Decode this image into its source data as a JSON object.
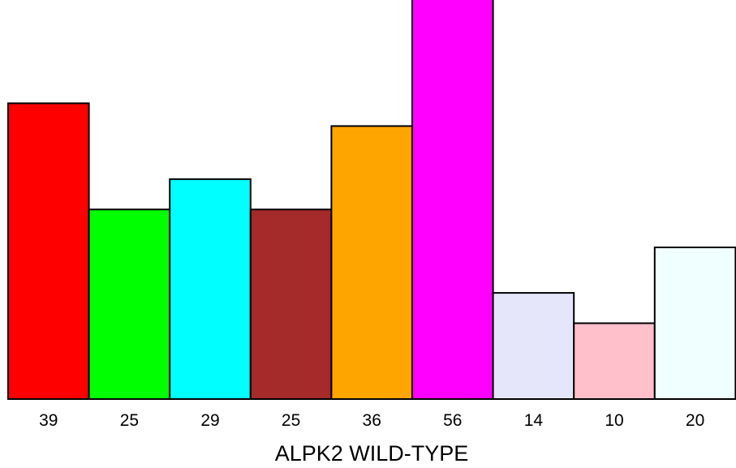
{
  "chart_data": {
    "type": "bar",
    "categories": [
      "39",
      "25",
      "29",
      "25",
      "36",
      "56",
      "14",
      "10",
      "20"
    ],
    "values": [
      39,
      25,
      29,
      25,
      36,
      56,
      14,
      10,
      20
    ],
    "colors": [
      "#ff0000",
      "#00ff00",
      "#00ffff",
      "#a52a2a",
      "#ffa500",
      "#ff00ff",
      "#e6e6fa",
      "#ffc0cb",
      "#f0ffff"
    ],
    "title": "",
    "xlabel": "ALPK2 WILD-TYPE",
    "ylabel": "",
    "ylim": [
      0,
      56
    ],
    "grid": false,
    "legend": "none"
  }
}
